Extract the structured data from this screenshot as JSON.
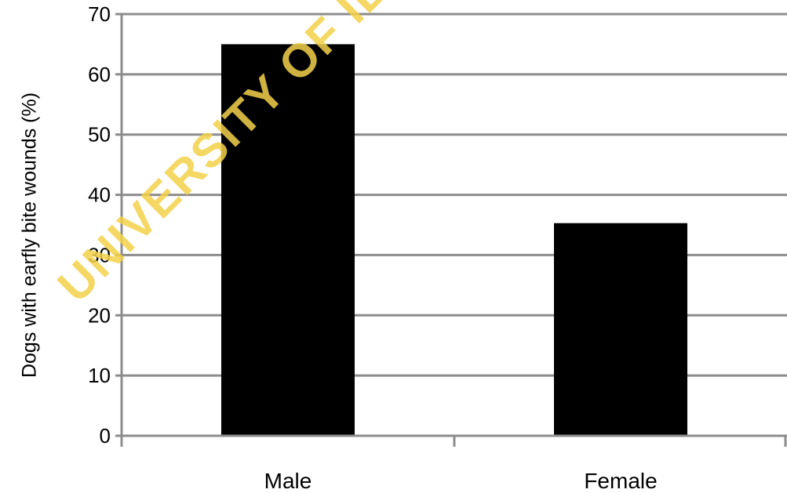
{
  "chart_data": {
    "type": "bar",
    "categories": [
      "Male",
      "Female"
    ],
    "values": [
      65,
      35.3
    ],
    "title": "",
    "xlabel": "",
    "ylabel": "Dogs with earfly bite wounds (%)",
    "ylim": [
      0,
      70
    ],
    "yticks": [
      "0",
      "10",
      "20",
      "30",
      "40",
      "50",
      "60",
      "70"
    ],
    "grid": true,
    "legend": "none",
    "colors": {
      "bar": "#000000",
      "grid": "#8c8c8c",
      "axis": "#8c8c8c"
    }
  },
  "watermark": {
    "text": "UNIVERSITY OF IB",
    "color": "#f4d24a"
  }
}
